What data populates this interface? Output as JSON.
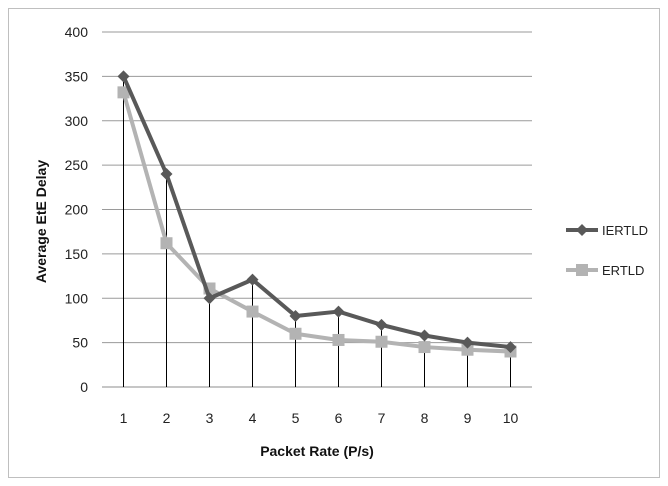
{
  "chart_data": {
    "type": "line",
    "title": "",
    "xlabel": "Packet Rate (P/s)",
    "ylabel": "Average EtE Delay",
    "categories": [
      "1",
      "2",
      "3",
      "4",
      "5",
      "6",
      "7",
      "8",
      "9",
      "10"
    ],
    "ylim": [
      0,
      400
    ],
    "yticks": [
      0,
      50,
      100,
      150,
      200,
      250,
      300,
      350,
      400
    ],
    "grid": true,
    "drop_lines": true,
    "legend_position": "right",
    "series": [
      {
        "name": "IERTLD",
        "marker": "diamond",
        "color": "#595959",
        "values": [
          350,
          240,
          100,
          121,
          80,
          85,
          70,
          58,
          50,
          45
        ]
      },
      {
        "name": "ERTLD",
        "marker": "square",
        "color": "#b3b3b3",
        "values": [
          332,
          162,
          111,
          85,
          60,
          53,
          51,
          45,
          42,
          40
        ]
      }
    ]
  }
}
